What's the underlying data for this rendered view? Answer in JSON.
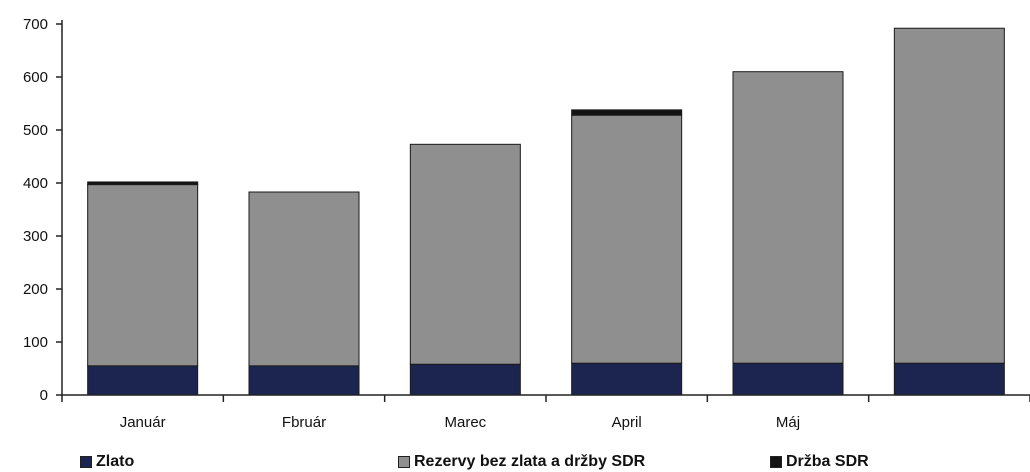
{
  "chart_data": {
    "type": "bar",
    "stacked": true,
    "categories": [
      "Január",
      "Fbruár",
      "Marec",
      "April",
      "Máj",
      ""
    ],
    "series": [
      {
        "name": "Zlato",
        "values": [
          55,
          55,
          58,
          60,
          60,
          60
        ],
        "color": "#1c2550"
      },
      {
        "name": "Rezervy bez zlata a držby SDR",
        "values": [
          342,
          328,
          415,
          468,
          550,
          632
        ],
        "color": "#8f8f8f"
      },
      {
        "name": "Držba SDR",
        "values": [
          5,
          0,
          0,
          10,
          0,
          0
        ],
        "color": "#141414"
      }
    ],
    "ylim": [
      0,
      700
    ],
    "yticks": [
      0,
      100,
      200,
      300,
      400,
      500,
      600,
      700
    ],
    "grid": false,
    "legend": "bottom",
    "title": "",
    "xlabel": "",
    "ylabel": ""
  }
}
